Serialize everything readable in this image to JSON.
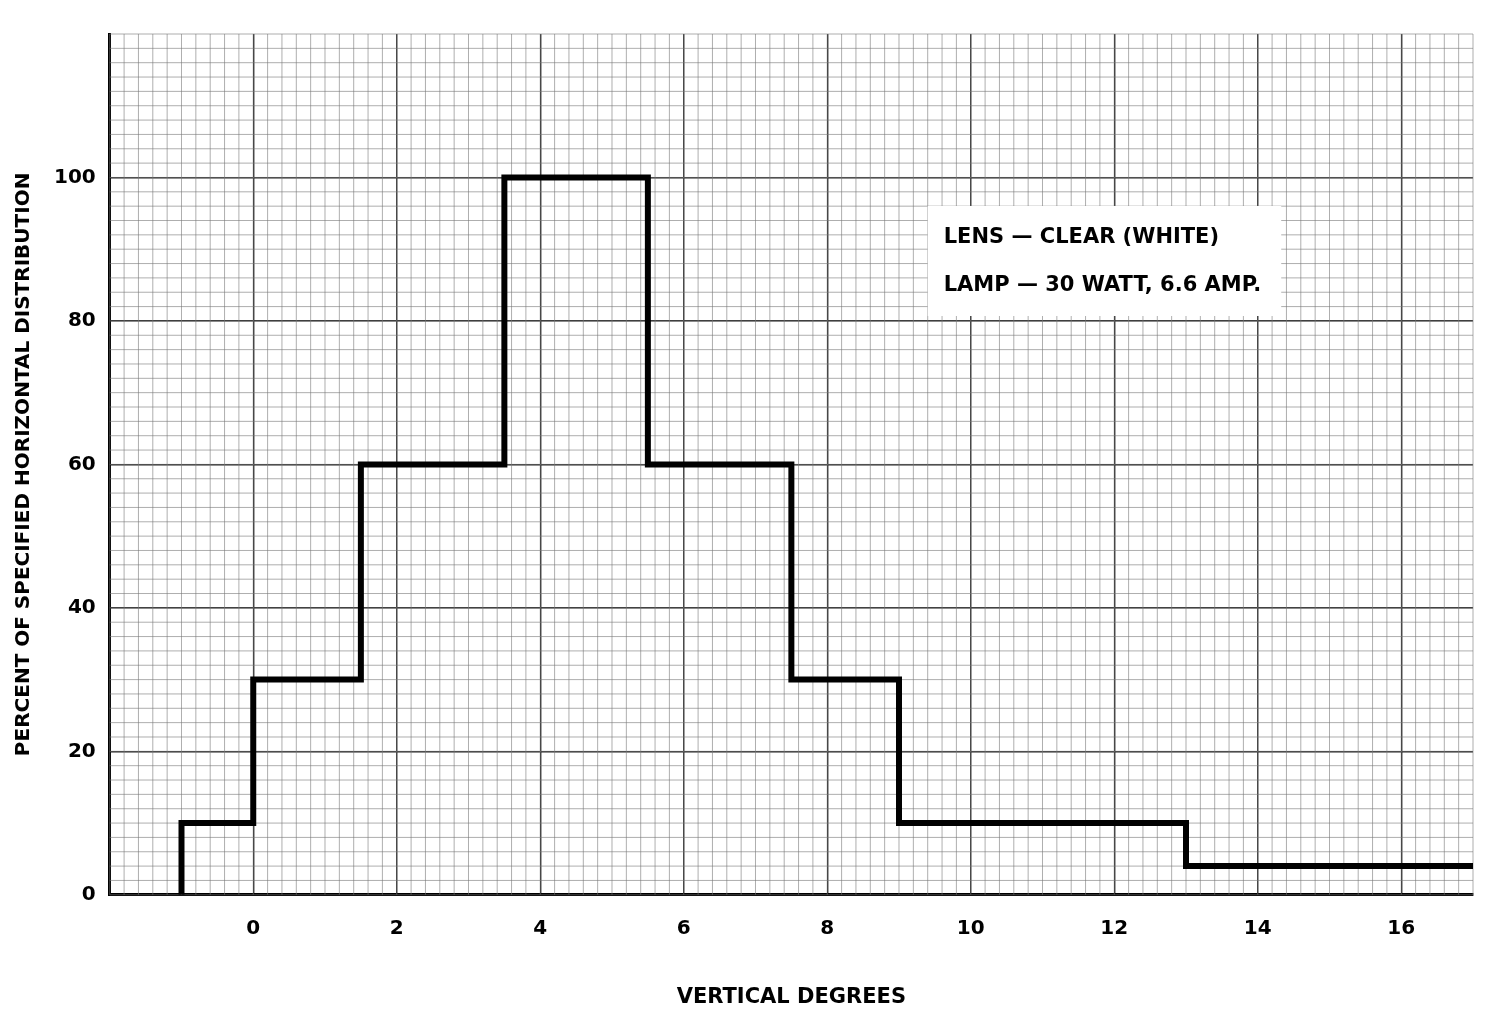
{
  "chart_data": {
    "type": "step",
    "xlabel": "VERTICAL DEGREES",
    "ylabel": "PERCENT OF SPECIFIED HORIZONTAL DISTRIBUTION",
    "series": [
      {
        "color": "#000000",
        "x": [
          -1,
          -1,
          0,
          1.5,
          3.5,
          5.5,
          7.5,
          9,
          13,
          17
        ],
        "values": [
          0,
          10,
          30,
          60,
          100,
          60,
          30,
          10,
          4,
          4
        ]
      }
    ],
    "xlim": [
      -2,
      17
    ],
    "xticks": [
      0,
      2,
      4,
      6,
      8,
      10,
      12,
      14,
      16
    ],
    "ylim": [
      0,
      120
    ],
    "yticks": [
      0,
      20,
      40,
      60,
      80,
      100
    ],
    "grid": true,
    "legend": false,
    "marker": "none",
    "line_style": "solid",
    "annotations": [
      "LENS — CLEAR (WHITE)",
      "LAMP — 30 WATT, 6.6 AMP."
    ]
  }
}
